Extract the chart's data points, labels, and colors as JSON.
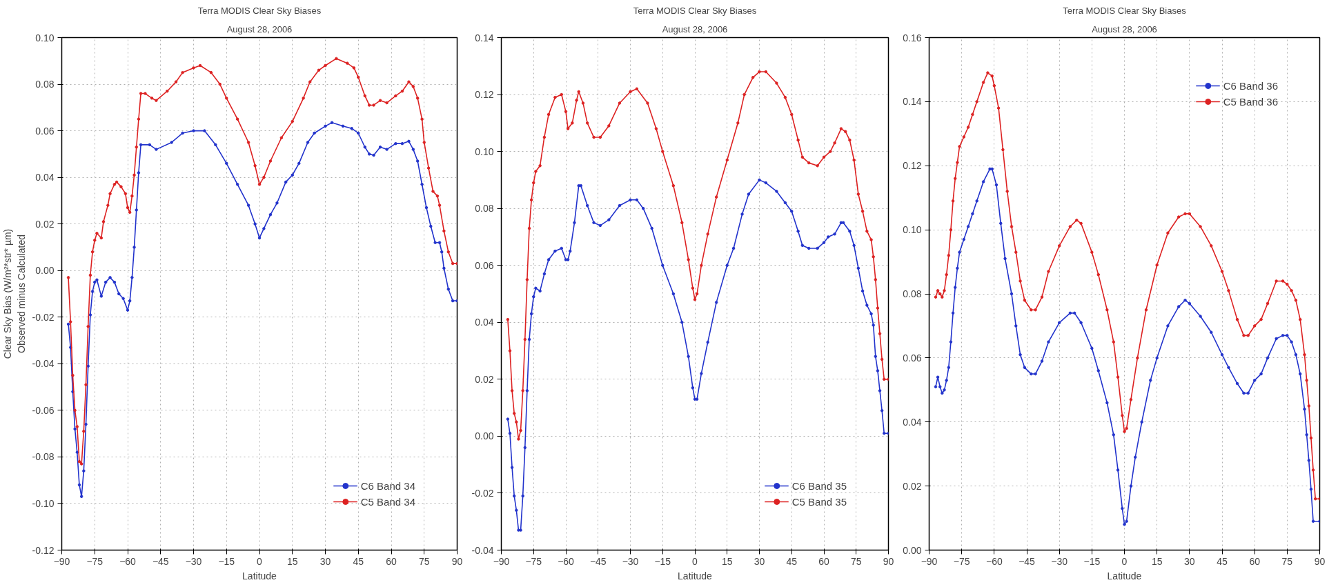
{
  "chart_data": [
    {
      "type": "line",
      "title": "Terra MODIS Clear Sky Biases",
      "subtitle": "August 28, 2006",
      "xlabel": "Latitude",
      "ylabel": "Clear Sky Bias (W/m²*str* µm)\nObserved minus Calculated",
      "xlim": [
        -90,
        90
      ],
      "xticks": [
        -90,
        -75,
        -60,
        -45,
        -30,
        -15,
        0,
        15,
        30,
        45,
        60,
        75,
        90
      ],
      "ylim": [
        -0.12,
        0.1
      ],
      "yticks": [
        {
          "value": -0.12,
          "label": "-0.12"
        },
        {
          "value": -0.1,
          "label": "-0.10"
        },
        {
          "value": -0.08,
          "label": "-0.08"
        },
        {
          "value": -0.06,
          "label": "-0.06"
        },
        {
          "value": -0.04,
          "label": "-0.04"
        },
        {
          "value": -0.02,
          "label": "-0.02"
        },
        {
          "value": 0,
          "label": "0.00"
        },
        {
          "value": 0.02,
          "label": "0.02"
        },
        {
          "value": 0.04,
          "label": "0.04"
        },
        {
          "value": 0.06,
          "label": "0.06"
        },
        {
          "value": 0.08,
          "label": "0.08"
        },
        {
          "value": 0.1,
          "label": "0.10"
        }
      ],
      "grid": true,
      "legend": "bottom right",
      "marker": "circle",
      "line_style": "solid",
      "series": [
        {
          "name": "C6 Band 34",
          "color": "#2233cc",
          "x": [
            -87,
            -86,
            -85,
            -84,
            -83,
            -82,
            -81,
            -80,
            -79,
            -78,
            -77,
            -76,
            -75,
            -74,
            -72,
            -70,
            -68,
            -66,
            -64,
            -62,
            -60,
            -59,
            -58,
            -57,
            -56,
            -55,
            -54,
            -50,
            -47,
            -40,
            -35,
            -30,
            -25,
            -20,
            -15,
            -10,
            -5,
            -2,
            0,
            2,
            5,
            8,
            12,
            15,
            18,
            22,
            25,
            30,
            33,
            38,
            42,
            45,
            48,
            50,
            52,
            55,
            58,
            62,
            65,
            68,
            70,
            72,
            74,
            76,
            78,
            80,
            82,
            83,
            84,
            86,
            88,
            90
          ],
          "values": [
            -0.023,
            -0.033,
            -0.052,
            -0.068,
            -0.078,
            -0.092,
            -0.097,
            -0.086,
            -0.066,
            -0.041,
            -0.019,
            -0.009,
            -0.005,
            -0.004,
            -0.011,
            -0.005,
            -0.003,
            -0.005,
            -0.01,
            -0.012,
            -0.017,
            -0.013,
            -0.003,
            0.01,
            0.026,
            0.042,
            0.054,
            0.054,
            0.052,
            0.055,
            0.059,
            0.06,
            0.06,
            0.054,
            0.046,
            0.037,
            0.028,
            0.02,
            0.014,
            0.018,
            0.024,
            0.029,
            0.038,
            0.041,
            0.046,
            0.055,
            0.059,
            0.062,
            0.0635,
            0.062,
            0.061,
            0.059,
            0.053,
            0.05,
            0.0495,
            0.053,
            0.052,
            0.0545,
            0.0545,
            0.0555,
            0.052,
            0.047,
            0.037,
            0.027,
            0.019,
            0.012,
            0.012,
            0.008,
            0.001,
            -0.008,
            -0.013,
            -0.013
          ]
        },
        {
          "name": "C5 Band 34",
          "color": "#dd2222",
          "x": [
            -87,
            -86,
            -85,
            -84,
            -83,
            -82,
            -81,
            -80,
            -79,
            -78,
            -77,
            -76,
            -75,
            -74,
            -72,
            -71,
            -69,
            -68,
            -66,
            -65,
            -63,
            -61,
            -60,
            -59,
            -58,
            -57,
            -56,
            -55,
            -54,
            -52,
            -49,
            -47,
            -42,
            -38,
            -35,
            -30,
            -27,
            -22,
            -18,
            -15,
            -10,
            -5,
            -2,
            0,
            2,
            5,
            10,
            15,
            20,
            23,
            27,
            30,
            35,
            40,
            43,
            45,
            48,
            50,
            52,
            55,
            58,
            62,
            65,
            68,
            70,
            72,
            74,
            75,
            77,
            79,
            81,
            82,
            84,
            86,
            88,
            90
          ],
          "values": [
            -0.003,
            -0.022,
            -0.045,
            -0.06,
            -0.067,
            -0.082,
            -0.083,
            -0.069,
            -0.049,
            -0.024,
            -0.002,
            0.008,
            0.013,
            0.016,
            0.014,
            0.021,
            0.028,
            0.033,
            0.037,
            0.038,
            0.036,
            0.033,
            0.027,
            0.025,
            0.032,
            0.041,
            0.053,
            0.065,
            0.076,
            0.076,
            0.074,
            0.073,
            0.077,
            0.081,
            0.085,
            0.087,
            0.088,
            0.085,
            0.08,
            0.074,
            0.065,
            0.055,
            0.045,
            0.037,
            0.04,
            0.047,
            0.057,
            0.064,
            0.074,
            0.081,
            0.086,
            0.088,
            0.091,
            0.089,
            0.087,
            0.083,
            0.075,
            0.071,
            0.071,
            0.073,
            0.072,
            0.075,
            0.077,
            0.081,
            0.079,
            0.074,
            0.065,
            0.055,
            0.044,
            0.034,
            0.032,
            0.028,
            0.017,
            0.008,
            0.003,
            0.003
          ]
        }
      ]
    },
    {
      "type": "line",
      "title": "Terra MODIS Clear Sky Biases",
      "subtitle": "August 28, 2006",
      "xlabel": "Latitude",
      "xlim": [
        -90,
        90
      ],
      "xticks": [
        -90,
        -75,
        -60,
        -45,
        -30,
        -15,
        0,
        15,
        30,
        45,
        60,
        75,
        90
      ],
      "ylim": [
        -0.04,
        0.14
      ],
      "yticks": [
        {
          "value": -0.04,
          "label": "-0.04"
        },
        {
          "value": -0.02,
          "label": "-0.02"
        },
        {
          "value": 0,
          "label": "0.00"
        },
        {
          "value": 0.02,
          "label": "0.02"
        },
        {
          "value": 0.04,
          "label": "0.04"
        },
        {
          "value": 0.06,
          "label": "0.06"
        },
        {
          "value": 0.08,
          "label": "0.08"
        },
        {
          "value": 0.1,
          "label": "0.10"
        },
        {
          "value": 0.12,
          "label": "0.12"
        },
        {
          "value": 0.14,
          "label": "0.14"
        }
      ],
      "grid": true,
      "legend": "bottom right",
      "marker": "circle",
      "line_style": "solid",
      "series": [
        {
          "name": "C6 Band 35",
          "color": "#2233cc",
          "x": [
            -87,
            -86,
            -85,
            -84,
            -83,
            -82,
            -81,
            -80,
            -79,
            -78,
            -77,
            -76,
            -75,
            -74,
            -72,
            -70,
            -68,
            -65,
            -62,
            -60,
            -59,
            -58,
            -56,
            -54,
            -53,
            -50,
            -47,
            -44,
            -40,
            -35,
            -30,
            -27,
            -24,
            -20,
            -15,
            -10,
            -6,
            -3,
            -1,
            0,
            1,
            3,
            6,
            10,
            15,
            18,
            22,
            25,
            30,
            33,
            38,
            42,
            45,
            48,
            50,
            53,
            57,
            60,
            62,
            65,
            68,
            69,
            72,
            74,
            76,
            78,
            80,
            82,
            83,
            84,
            85,
            86,
            87,
            88,
            90
          ],
          "values": [
            0.006,
            0.001,
            -0.011,
            -0.021,
            -0.026,
            -0.033,
            -0.033,
            -0.021,
            -0.004,
            0.016,
            0.034,
            0.043,
            0.049,
            0.052,
            0.051,
            0.057,
            0.062,
            0.065,
            0.066,
            0.062,
            0.062,
            0.065,
            0.075,
            0.088,
            0.088,
            0.081,
            0.075,
            0.074,
            0.076,
            0.081,
            0.083,
            0.083,
            0.08,
            0.073,
            0.06,
            0.05,
            0.04,
            0.028,
            0.017,
            0.013,
            0.013,
            0.022,
            0.033,
            0.047,
            0.06,
            0.066,
            0.078,
            0.085,
            0.09,
            0.089,
            0.086,
            0.082,
            0.079,
            0.072,
            0.067,
            0.066,
            0.066,
            0.068,
            0.07,
            0.071,
            0.075,
            0.075,
            0.072,
            0.067,
            0.059,
            0.051,
            0.046,
            0.043,
            0.039,
            0.028,
            0.023,
            0.016,
            0.009,
            0.001,
            0.001
          ]
        },
        {
          "name": "C5 Band 35",
          "color": "#dd2222",
          "x": [
            -87,
            -86,
            -85,
            -84,
            -83,
            -82,
            -81,
            -80,
            -79,
            -78,
            -77,
            -76,
            -75,
            -74,
            -72,
            -70,
            -68,
            -65,
            -62,
            -60,
            -59,
            -57,
            -55,
            -54,
            -52,
            -50,
            -47,
            -44,
            -40,
            -35,
            -30,
            -27,
            -22,
            -18,
            -15,
            -10,
            -6,
            -3,
            -1,
            0,
            1,
            3,
            6,
            10,
            15,
            20,
            23,
            27,
            30,
            33,
            38,
            42,
            45,
            48,
            50,
            53,
            57,
            60,
            63,
            65,
            68,
            70,
            72,
            74,
            76,
            78,
            80,
            82,
            83,
            84,
            85,
            86,
            87,
            88,
            90
          ],
          "values": [
            0.041,
            0.03,
            0.016,
            0.008,
            0.005,
            -0.001,
            0.002,
            0.016,
            0.034,
            0.055,
            0.073,
            0.083,
            0.089,
            0.093,
            0.095,
            0.105,
            0.113,
            0.119,
            0.12,
            0.114,
            0.108,
            0.11,
            0.118,
            0.121,
            0.117,
            0.11,
            0.105,
            0.105,
            0.109,
            0.117,
            0.121,
            0.122,
            0.117,
            0.108,
            0.1,
            0.088,
            0.075,
            0.062,
            0.052,
            0.048,
            0.05,
            0.06,
            0.071,
            0.084,
            0.097,
            0.11,
            0.12,
            0.126,
            0.128,
            0.128,
            0.124,
            0.119,
            0.113,
            0.104,
            0.098,
            0.096,
            0.095,
            0.098,
            0.1,
            0.103,
            0.108,
            0.107,
            0.104,
            0.097,
            0.085,
            0.079,
            0.072,
            0.069,
            0.063,
            0.055,
            0.045,
            0.036,
            0.027,
            0.02,
            0.02
          ]
        }
      ]
    },
    {
      "type": "line",
      "title": "Terra MODIS Clear Sky Biases",
      "subtitle": "August 28, 2006",
      "xlabel": "Latitude",
      "xlim": [
        -90,
        90
      ],
      "xticks": [
        -90,
        -75,
        -60,
        -45,
        -30,
        -15,
        0,
        15,
        30,
        45,
        60,
        75,
        90
      ],
      "ylim": [
        0,
        0.16
      ],
      "yticks": [
        {
          "value": 0,
          "label": "0.00"
        },
        {
          "value": 0.02,
          "label": "0.02"
        },
        {
          "value": 0.04,
          "label": "0.04"
        },
        {
          "value": 0.06,
          "label": "0.06"
        },
        {
          "value": 0.08,
          "label": "0.08"
        },
        {
          "value": 0.1,
          "label": "0.10"
        },
        {
          "value": 0.12,
          "label": "0.12"
        },
        {
          "value": 0.14,
          "label": "0.14"
        },
        {
          "value": 0.16,
          "label": "0.16"
        }
      ],
      "grid": true,
      "legend": "top right",
      "marker": "circle",
      "line_style": "solid",
      "series": [
        {
          "name": "C6 Band 36",
          "color": "#2233cc",
          "x": [
            -87,
            -86,
            -85,
            -84,
            -83,
            -82,
            -81,
            -80,
            -79,
            -78,
            -77,
            -76,
            -74,
            -72,
            -70,
            -68,
            -65,
            -62,
            -61,
            -59,
            -57,
            -55,
            -52,
            -50,
            -48,
            -46,
            -43,
            -41,
            -38,
            -35,
            -30,
            -25,
            -23,
            -20,
            -15,
            -12,
            -8,
            -5,
            -3,
            -1,
            0,
            1,
            3,
            5,
            8,
            12,
            15,
            20,
            25,
            28,
            30,
            35,
            40,
            45,
            48,
            52,
            55,
            57,
            60,
            63,
            66,
            70,
            73,
            75,
            77,
            79,
            81,
            83,
            84,
            85,
            86,
            87,
            90
          ],
          "values": [
            0.051,
            0.054,
            0.051,
            0.049,
            0.05,
            0.053,
            0.057,
            0.065,
            0.074,
            0.082,
            0.088,
            0.093,
            0.097,
            0.101,
            0.105,
            0.109,
            0.115,
            0.119,
            0.119,
            0.114,
            0.102,
            0.091,
            0.08,
            0.07,
            0.061,
            0.057,
            0.055,
            0.055,
            0.059,
            0.065,
            0.071,
            0.074,
            0.074,
            0.071,
            0.063,
            0.056,
            0.046,
            0.036,
            0.025,
            0.013,
            0.008,
            0.009,
            0.02,
            0.029,
            0.04,
            0.053,
            0.06,
            0.07,
            0.076,
            0.078,
            0.077,
            0.073,
            0.068,
            0.061,
            0.057,
            0.052,
            0.049,
            0.049,
            0.053,
            0.055,
            0.06,
            0.066,
            0.067,
            0.067,
            0.065,
            0.061,
            0.055,
            0.044,
            0.036,
            0.028,
            0.019,
            0.009,
            0.009
          ]
        },
        {
          "name": "C5 Band 36",
          "color": "#dd2222",
          "x": [
            -87,
            -86,
            -85,
            -84,
            -83,
            -82,
            -81,
            -80,
            -79,
            -78,
            -77,
            -76,
            -74,
            -72,
            -70,
            -68,
            -65,
            -63,
            -61,
            -60,
            -58,
            -56,
            -54,
            -52,
            -50,
            -48,
            -46,
            -43,
            -41,
            -38,
            -35,
            -30,
            -25,
            -22,
            -20,
            -15,
            -12,
            -8,
            -5,
            -3,
            -1,
            0,
            1,
            3,
            6,
            10,
            15,
            20,
            25,
            28,
            30,
            35,
            40,
            45,
            48,
            52,
            55,
            57,
            60,
            63,
            66,
            70,
            73,
            75,
            77,
            79,
            81,
            83,
            84,
            85,
            86,
            87,
            88,
            90
          ],
          "values": [
            0.079,
            0.081,
            0.08,
            0.079,
            0.081,
            0.086,
            0.092,
            0.1,
            0.109,
            0.116,
            0.121,
            0.126,
            0.129,
            0.132,
            0.136,
            0.14,
            0.146,
            0.149,
            0.148,
            0.145,
            0.138,
            0.125,
            0.112,
            0.101,
            0.093,
            0.084,
            0.078,
            0.075,
            0.075,
            0.079,
            0.087,
            0.095,
            0.101,
            0.103,
            0.102,
            0.093,
            0.086,
            0.075,
            0.065,
            0.054,
            0.042,
            0.037,
            0.038,
            0.047,
            0.06,
            0.075,
            0.089,
            0.099,
            0.104,
            0.105,
            0.105,
            0.101,
            0.095,
            0.087,
            0.081,
            0.072,
            0.067,
            0.067,
            0.07,
            0.072,
            0.077,
            0.084,
            0.084,
            0.083,
            0.081,
            0.078,
            0.072,
            0.061,
            0.053,
            0.045,
            0.035,
            0.025,
            0.016,
            0.016
          ]
        }
      ]
    }
  ]
}
